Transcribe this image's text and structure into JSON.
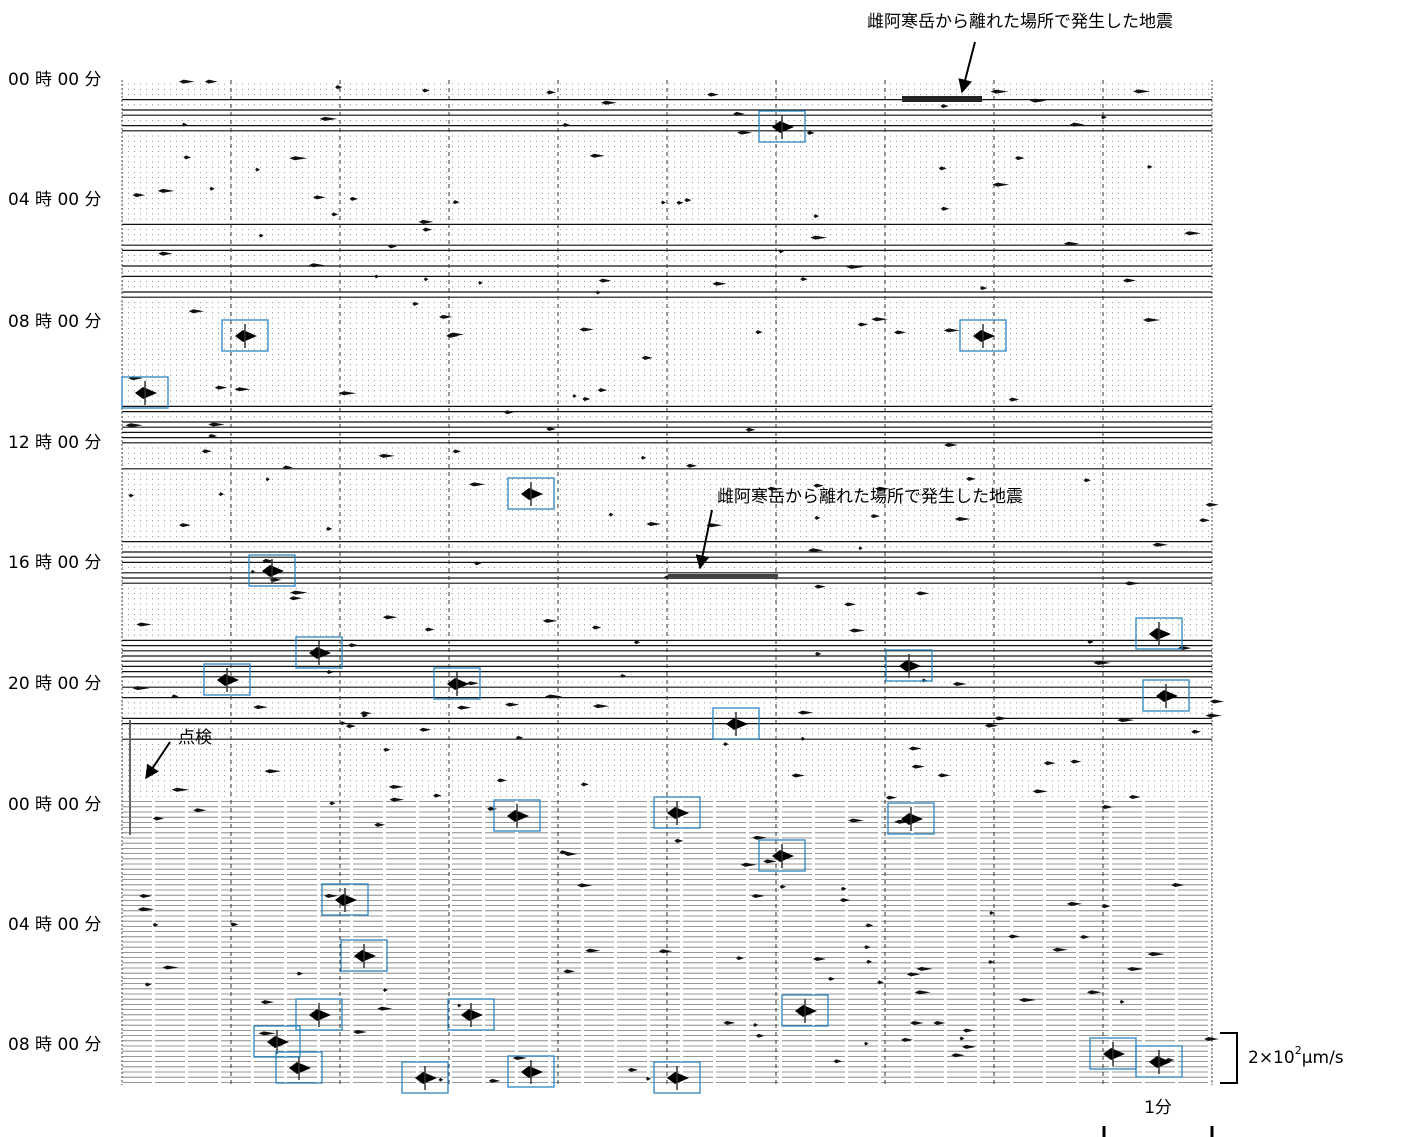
{
  "time_labels": [
    "00 時 00 分",
    "04 時 00 分",
    "08 時 00 分",
    "12 時 00 分",
    "16 時 00 分",
    "20 時 00 分",
    "00 時 00 分",
    "04 時 00 分",
    "08 時 00 分"
  ],
  "annotations": {
    "distant_quake_top": "雌阿寒岳から離れた場所で発生した地震",
    "distant_quake_middle": "雌阿寒岳から離れた場所で発生した地震",
    "inspection": "点検"
  },
  "scale": {
    "amplitude": {
      "mantissa": "2×10",
      "exponent": "2",
      "unit": "μm/s"
    },
    "time": "1分"
  }
}
